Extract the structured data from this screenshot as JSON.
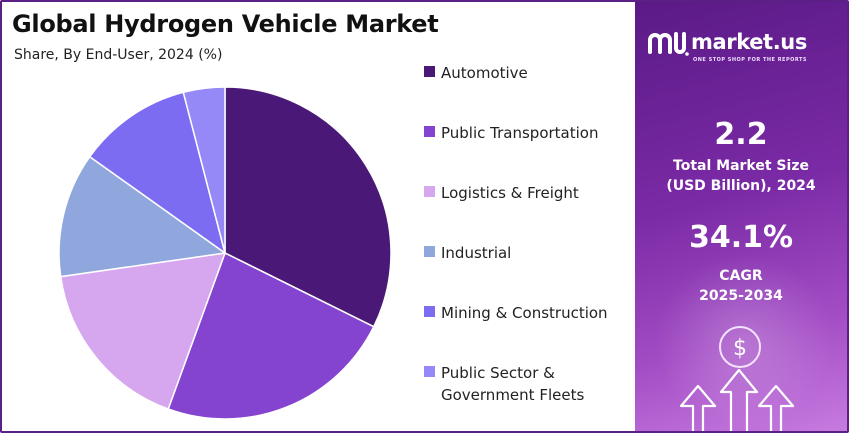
{
  "header": {
    "title": "Global Hydrogen Vehicle Market",
    "subtitle": "Share, By End-User, 2024 (%)"
  },
  "chart_data": {
    "type": "pie",
    "title": "Global Hydrogen Vehicle Market",
    "subtitle": "Share, By End-User, 2024 (%)",
    "categories": [
      "Automotive",
      "Public Transportation",
      "Logistics & Freight",
      "Industrial",
      "Mining & Construction",
      "Public Sector & Government Fleets"
    ],
    "values": [
      32.0,
      23.0,
      17.0,
      12.0,
      11.0,
      4.0
    ],
    "colors": [
      "#4a1978",
      "#8444cf",
      "#d6a6ee",
      "#90a7de",
      "#7b6cf2",
      "#9489f7"
    ],
    "start_angle_deg": 0,
    "direction": "clockwise",
    "legend_position": "right"
  },
  "side_panel": {
    "brand_name": "market.us",
    "brand_tagline": "ONE STOP SHOP FOR THE REPORTS",
    "market_size_value": "2.2",
    "market_size_label": "Total Market Size\n(USD Billion), 2024",
    "cagr_value": "34.1%",
    "cagr_label": "CAGR\n2025-2034",
    "currency_symbol": "$",
    "icons": [
      "market-us-logo-icon",
      "dollar-icon",
      "arrow-up-icon"
    ]
  }
}
